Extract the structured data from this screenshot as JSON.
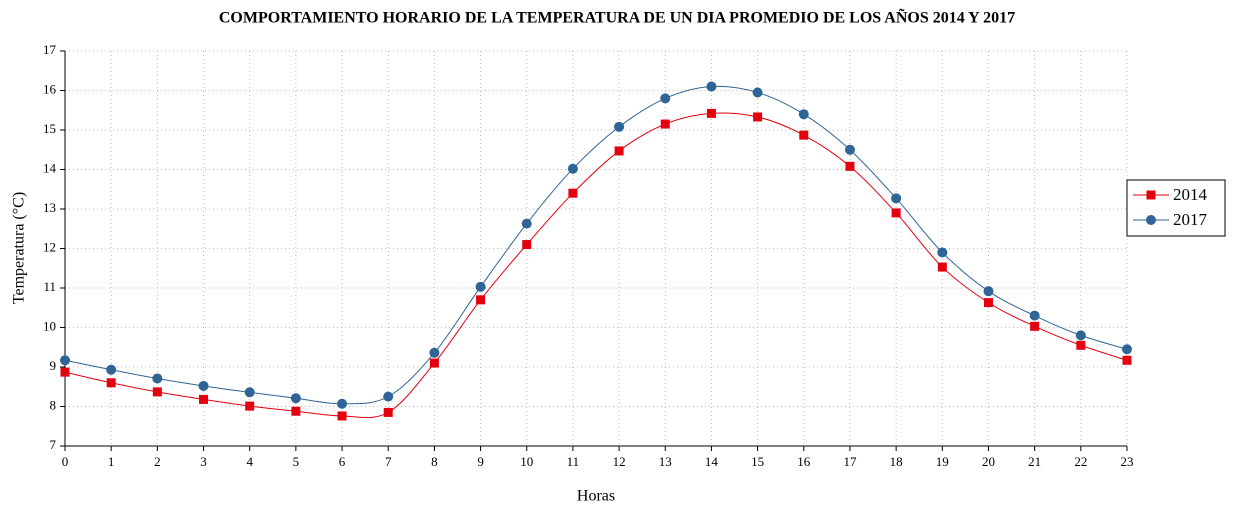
{
  "chart_data": {
    "type": "line",
    "title": "COMPORTAMIENTO HORARIO DE LA TEMPERATURA DE UN DIA PROMEDIO DE LOS AÑOS 2014 Y 2017",
    "x_label": "Horas",
    "y_label": "Temperatura (°C)",
    "x": [
      0,
      1,
      2,
      3,
      4,
      5,
      6,
      7,
      8,
      9,
      10,
      11,
      12,
      13,
      14,
      15,
      16,
      17,
      18,
      19,
      20,
      21,
      22,
      23
    ],
    "series": [
      {
        "name": "2014",
        "color": "#e3000f",
        "marker": "square",
        "values": [
          8.87,
          8.6,
          8.37,
          8.18,
          8.01,
          7.88,
          7.76,
          7.85,
          9.1,
          10.7,
          12.1,
          13.4,
          14.47,
          15.15,
          15.42,
          15.33,
          14.87,
          14.08,
          12.9,
          11.53,
          10.63,
          10.03,
          9.55,
          9.17
        ]
      },
      {
        "name": "2017",
        "color": "#2f6496",
        "marker": "circle",
        "values": [
          9.17,
          8.93,
          8.71,
          8.52,
          8.36,
          8.21,
          8.07,
          8.25,
          9.36,
          11.03,
          12.63,
          14.02,
          15.08,
          15.8,
          16.1,
          15.95,
          15.4,
          14.5,
          13.27,
          11.9,
          10.92,
          10.3,
          9.8,
          9.45
        ]
      }
    ],
    "xlim": [
      0,
      23
    ],
    "xticks": [
      0,
      1,
      2,
      3,
      4,
      5,
      6,
      7,
      8,
      9,
      10,
      11,
      12,
      13,
      14,
      15,
      16,
      17,
      18,
      19,
      20,
      21,
      22,
      23
    ],
    "ylim": [
      7,
      17
    ],
    "yticks": [
      7,
      8,
      9,
      10,
      11,
      12,
      13,
      14,
      15,
      16,
      17
    ],
    "grid": true,
    "smooth": true,
    "legend": "right"
  }
}
